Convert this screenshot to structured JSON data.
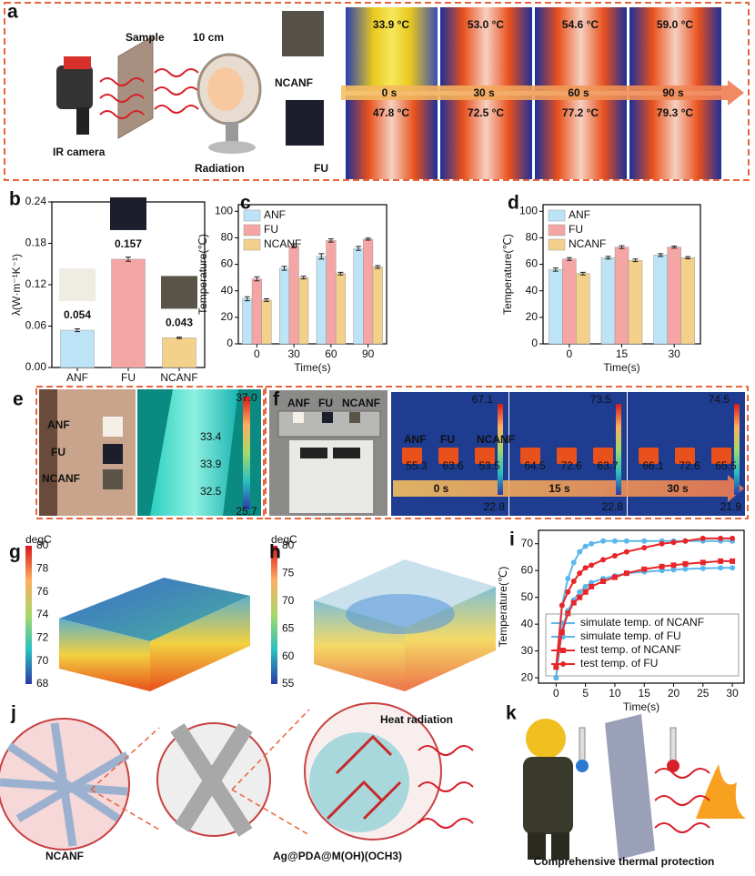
{
  "panel_labels": [
    "a",
    "b",
    "c",
    "d",
    "e",
    "f",
    "g",
    "h",
    "i",
    "j",
    "k"
  ],
  "a": {
    "sample": "Sample",
    "distance": "10 cm",
    "camera": "IR camera",
    "source": "Radiation",
    "rows": [
      {
        "name": "NCANF",
        "temps": [
          "33.9 °C",
          "53.0 °C",
          "54.6 °C",
          "59.0 °C"
        ]
      },
      {
        "name": "FU",
        "temps": [
          "47.8 °C",
          "72.5 °C",
          "77.2 °C",
          "79.3 °C"
        ]
      }
    ],
    "times": [
      "0 s",
      "30 s",
      "60 s",
      "90 s"
    ]
  },
  "e": {
    "labels": [
      "ANF",
      "FU",
      "NCANF"
    ],
    "scale_max": "37.0",
    "scale_min": "25.7",
    "spots": [
      "33.4",
      "33.9",
      "32.5"
    ]
  },
  "f": {
    "labels": [
      "ANF",
      "FU",
      "NCANF"
    ],
    "frames": [
      {
        "time": "0 s",
        "max": "67.1",
        "min": "22.8",
        "spots": [
          "55.3",
          "63.6",
          "53.5"
        ]
      },
      {
        "time": "15 s",
        "max": "73.5",
        "min": "22.8",
        "spots": [
          "64.5",
          "72.6",
          "63.7"
        ]
      },
      {
        "time": "30 s",
        "max": "74.5",
        "min": "21.9",
        "spots": [
          "66.1",
          "72.6",
          "65.5"
        ]
      }
    ]
  },
  "g": {
    "unit": "degC",
    "ticks": [
      "80",
      "78",
      "76",
      "74",
      "72",
      "70",
      "68"
    ]
  },
  "h": {
    "unit": "degC",
    "ticks": [
      "80",
      "75",
      "70",
      "65",
      "60",
      "55"
    ]
  },
  "j": {
    "left": "NCANF",
    "right": "Ag@PDA@M(OH)(OCH3)",
    "arrow_text": "Heat radiation"
  },
  "k": {
    "caption": "Comprehensive thermal protection"
  },
  "chart_data": [
    {
      "type": "bar",
      "ylabel": "λ(W·m⁻¹K⁻¹)",
      "categories": [
        "ANF",
        "FU",
        "NCANF"
      ],
      "values": [
        0.054,
        0.157,
        0.043
      ],
      "errors": [
        0.002,
        0.003,
        0.001
      ],
      "colors": [
        "#bde4f6",
        "#f6a5a5",
        "#f3d18a"
      ],
      "ylim": [
        0,
        0.24
      ],
      "yticks": [
        {
          "value": 0,
          "label": "0.00"
        },
        0.06,
        0.12,
        0.18,
        0.24
      ]
    },
    {
      "type": "bar",
      "xlabel": "Time(s)",
      "ylabel": "Temperature(℃)",
      "categories": [
        0,
        30,
        60,
        90
      ],
      "series": [
        {
          "name": "ANF",
          "color": "#bde4f6",
          "values": [
            34,
            57,
            66,
            72
          ],
          "errors": [
            1.5,
            1.5,
            2,
            1.5
          ]
        },
        {
          "name": "FU",
          "color": "#f6a5a5",
          "values": [
            49,
            74,
            78,
            79
          ],
          "errors": [
            1.5,
            1.5,
            1.2,
            0.8
          ]
        },
        {
          "name": "NCANF",
          "color": "#f3d18a",
          "values": [
            33,
            50,
            53,
            58
          ],
          "errors": [
            1,
            1,
            1,
            1
          ]
        }
      ],
      "ylim": [
        0,
        105
      ],
      "yticks": [
        0,
        20,
        40,
        60,
        80,
        100
      ],
      "legend": "upper left"
    },
    {
      "type": "bar",
      "xlabel": "Time(s)",
      "ylabel": "Temperature(℃)",
      "categories": [
        0,
        15,
        30
      ],
      "series": [
        {
          "name": "ANF",
          "color": "#bde4f6",
          "values": [
            56,
            65,
            67
          ],
          "errors": [
            1.2,
            1,
            1
          ]
        },
        {
          "name": "FU",
          "color": "#f6a5a5",
          "values": [
            64,
            73,
            73
          ],
          "errors": [
            1,
            1,
            0.8
          ]
        },
        {
          "name": "NCANF",
          "color": "#f3d18a",
          "values": [
            53,
            63,
            65
          ],
          "errors": [
            1,
            1,
            0.8
          ]
        }
      ],
      "ylim": [
        0,
        105
      ],
      "yticks": [
        0,
        20,
        40,
        60,
        80,
        100
      ],
      "legend": "upper left"
    },
    {
      "type": "line",
      "xlabel": "Time(s)",
      "ylabel": "Temperature(℃)",
      "x": [
        0,
        1,
        2,
        3,
        4,
        5,
        6,
        8,
        10,
        12,
        15,
        18,
        20,
        22,
        25,
        28,
        30
      ],
      "series": [
        {
          "name": "simulate temp. of NCANF",
          "color": "#5bb8ec",
          "marker": "circle",
          "values": [
            20,
            38,
            45,
            49,
            52,
            54,
            55.5,
            57,
            58,
            59,
            59.5,
            60,
            60.3,
            60.6,
            60.8,
            61,
            61
          ]
        },
        {
          "name": "simulate temp. of FU",
          "color": "#5bb8ec",
          "marker": "circle",
          "values": [
            20,
            47,
            57,
            63,
            67,
            69,
            70,
            71,
            71,
            71,
            71,
            71,
            71,
            71,
            71,
            71,
            71
          ]
        },
        {
          "name": "test temp. of NCANF",
          "color": "#e8262a",
          "marker": "square",
          "values": [
            24,
            37,
            44,
            48,
            50,
            52,
            54,
            56,
            57.5,
            59,
            60.5,
            61.5,
            62,
            62.5,
            63,
            63.5,
            63.5
          ]
        },
        {
          "name": "test temp. of FU",
          "color": "#e8262a",
          "marker": "circle",
          "values": [
            24,
            47,
            52,
            56,
            59,
            61,
            62,
            64,
            65.5,
            67,
            68.5,
            70,
            70.5,
            71,
            72,
            72,
            72
          ]
        }
      ],
      "xlim": [
        -3,
        32
      ],
      "xticks": [
        0,
        5,
        10,
        15,
        20,
        25,
        30
      ],
      "ylim": [
        18,
        75
      ],
      "yticks": [
        20,
        30,
        40,
        50,
        60,
        70
      ],
      "legend": "lower right"
    }
  ]
}
